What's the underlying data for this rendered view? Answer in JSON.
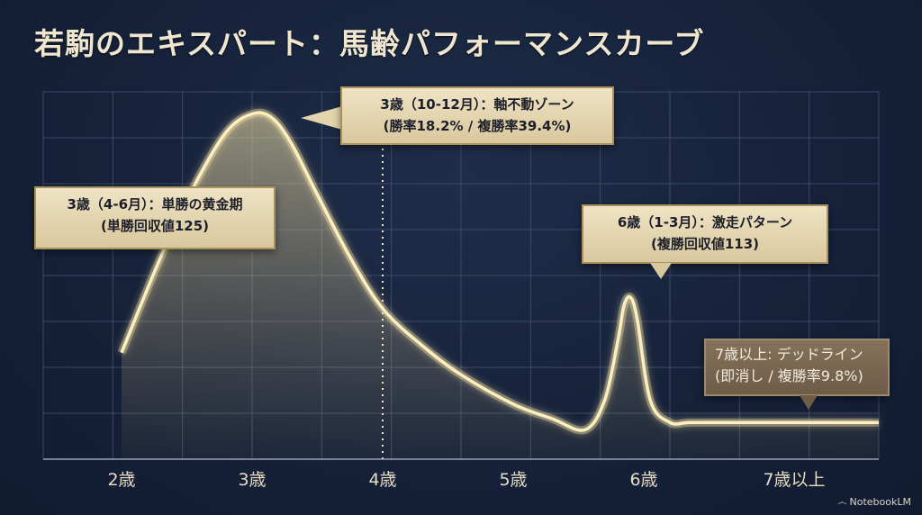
{
  "title": "若駒のエキスパート：馬齢パフォーマンスカーブ",
  "brand": {
    "name": "NotebookLM",
    "icon": "notebooklm-logo-icon"
  },
  "colors": {
    "background": "#15213a",
    "curve": "#f6e3a3",
    "grid": "#4a5570",
    "callout": "#e8dab7",
    "callout_dark": "#7a6751"
  },
  "chart_data": {
    "type": "area",
    "title": "若駒のエキスパート：馬齢パフォーマンスカーブ",
    "xlabel": "",
    "ylabel": "",
    "categories": [
      "2歳",
      "3歳",
      "4歳",
      "5歳",
      "6歳",
      "7歳以上"
    ],
    "x_ticks": [
      2,
      3,
      4,
      5,
      6,
      7
    ],
    "xlim": [
      1.4,
      7.8
    ],
    "ylim": [
      0,
      100
    ],
    "grid": true,
    "series": [
      {
        "x": [
          2.0,
          2.3,
          2.55,
          2.8,
          3.0,
          3.15,
          3.3,
          3.5,
          3.75,
          4.0,
          4.3,
          4.6,
          5.0,
          5.3,
          5.55,
          5.7,
          5.8,
          5.85,
          5.9,
          5.95,
          6.05,
          6.2,
          6.35,
          6.6,
          7.0,
          7.4,
          7.8
        ],
        "values": [
          29,
          55,
          74,
          89,
          94,
          93,
          86,
          72,
          55,
          41,
          31,
          23,
          15,
          11,
          8,
          16,
          32,
          42,
          44,
          38,
          16,
          10,
          10,
          10,
          10,
          10,
          10
        ]
      }
    ],
    "reference_line": {
      "x": 4.0,
      "style": "dotted"
    },
    "annotations": [
      {
        "line1": "3歳（4-6月）：単勝の黄金期",
        "line2": "(単勝回収値125)"
      },
      {
        "line1": "3歳（10-12月）：軸不動ゾーン",
        "line2": "(勝率18.2% / 複勝率39.4%)"
      },
      {
        "line1": "6歳（1-3月）：激走パターン",
        "line2": "(複勝回収値113)"
      },
      {
        "line1": "7歳以上: デッドライン",
        "line2": "(即消し / 複勝率9.8%)"
      }
    ]
  }
}
